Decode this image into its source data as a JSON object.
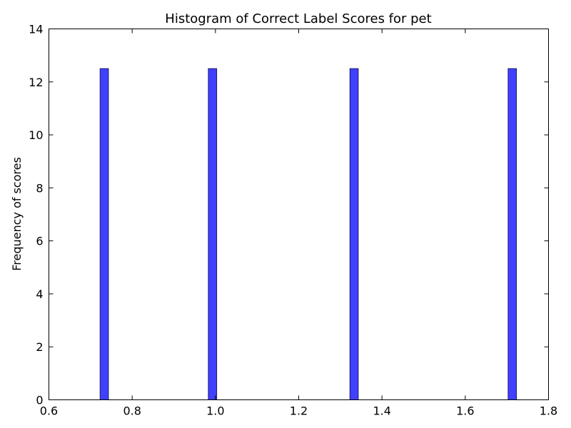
{
  "chart_data": {
    "type": "bar",
    "title": "Histogram of Correct Label Scores for pet",
    "xlabel": "",
    "ylabel": "Frequency of scores",
    "xlim": [
      0.6,
      1.8
    ],
    "ylim": [
      0,
      14
    ],
    "xticks": [
      "0.6",
      "0.8",
      "1.0",
      "1.2",
      "1.4",
      "1.6",
      "1.8"
    ],
    "yticks": [
      "0",
      "2",
      "4",
      "6",
      "8",
      "10",
      "12",
      "14"
    ],
    "bin_width": 0.02,
    "bars": [
      {
        "x": 0.733,
        "value": 12.5
      },
      {
        "x": 0.993,
        "value": 12.5
      },
      {
        "x": 1.333,
        "value": 12.5
      },
      {
        "x": 1.713,
        "value": 12.5
      }
    ],
    "bar_color": "#4040ff",
    "grid": false
  }
}
